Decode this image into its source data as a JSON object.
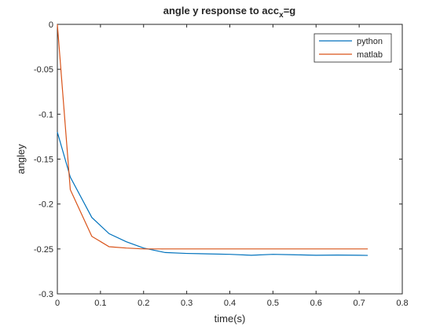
{
  "chart_data": {
    "type": "line",
    "title": {
      "main": "angle y response to acc",
      "subscript": "x",
      "suffix": "=g"
    },
    "xlabel": "time(s)",
    "ylabel": "angley",
    "xlim": [
      0,
      0.8
    ],
    "ylim": [
      -0.3,
      0
    ],
    "xticks": [
      0,
      0.1,
      0.2,
      0.3,
      0.4,
      0.5,
      0.6,
      0.7,
      0.8
    ],
    "xtick_labels": [
      "0",
      "0.1",
      "0.2",
      "0.3",
      "0.4",
      "0.5",
      "0.6",
      "0.7",
      "0.8"
    ],
    "yticks": [
      0,
      -0.05,
      -0.1,
      -0.15,
      -0.2,
      -0.25,
      -0.3
    ],
    "ytick_labels": [
      "0",
      "-0.05",
      "-0.1",
      "-0.15",
      "-0.2",
      "-0.25",
      "-0.3"
    ],
    "grid": false,
    "legend_position": "top-right",
    "series": [
      {
        "name": "python",
        "color": "#0072BD",
        "points": [
          [
            0,
            -0.12
          ],
          [
            0.03,
            -0.17
          ],
          [
            0.08,
            -0.215
          ],
          [
            0.12,
            -0.233
          ],
          [
            0.16,
            -0.242
          ],
          [
            0.2,
            -0.249
          ],
          [
            0.25,
            -0.254
          ],
          [
            0.3,
            -0.255
          ],
          [
            0.35,
            -0.2555
          ],
          [
            0.4,
            -0.256
          ],
          [
            0.45,
            -0.257
          ],
          [
            0.5,
            -0.256
          ],
          [
            0.55,
            -0.2565
          ],
          [
            0.6,
            -0.257
          ],
          [
            0.65,
            -0.2568
          ],
          [
            0.7,
            -0.257
          ],
          [
            0.72,
            -0.2572
          ]
        ]
      },
      {
        "name": "matlab",
        "color": "#D95319",
        "points": [
          [
            0,
            0
          ],
          [
            0.03,
            -0.184
          ],
          [
            0.08,
            -0.236
          ],
          [
            0.12,
            -0.2475
          ],
          [
            0.16,
            -0.249
          ],
          [
            0.2,
            -0.25
          ],
          [
            0.3,
            -0.25
          ],
          [
            0.4,
            -0.25
          ],
          [
            0.5,
            -0.25
          ],
          [
            0.6,
            -0.25
          ],
          [
            0.72,
            -0.25
          ]
        ]
      }
    ]
  }
}
